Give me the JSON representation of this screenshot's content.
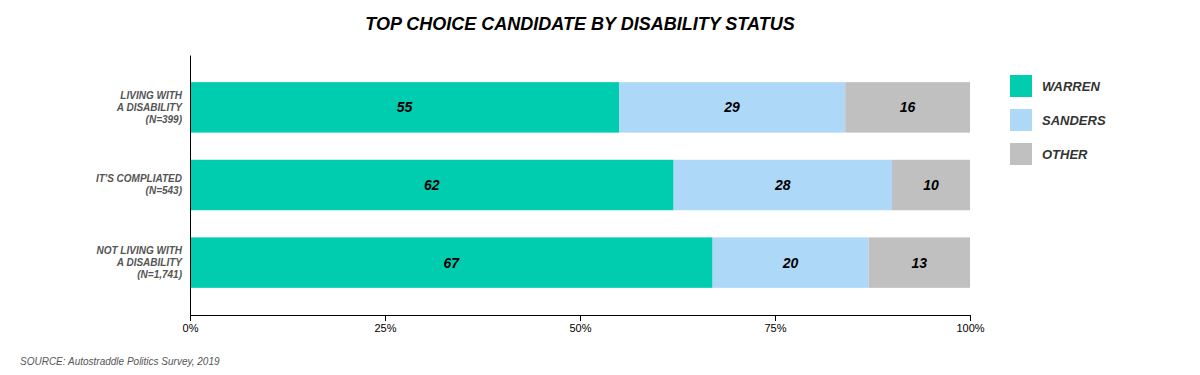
{
  "chart_data": {
    "type": "bar",
    "orientation": "horizontal",
    "stacked": true,
    "title": "TOP CHOICE CANDIDATE BY DISABILITY STATUS",
    "categories": [
      "NOT LIVING WITH\nA DISABILITY\n(N=1,741)",
      "IT'S COMPLIATED\n(N=543)",
      "LIVING WITH\nA DISABILITY\n(N=399)"
    ],
    "series": [
      {
        "name": "WARREN",
        "color": "#00CDB0",
        "values": [
          67,
          62,
          55
        ]
      },
      {
        "name": "SANDERS",
        "color": "#ADD8F7",
        "values": [
          20,
          28,
          29
        ]
      },
      {
        "name": "OTHER",
        "color": "#C0C0C0",
        "values": [
          13,
          10,
          16
        ]
      }
    ],
    "xlim": [
      0,
      100
    ],
    "xticks": [
      {
        "value": 0,
        "label": "0%"
      },
      {
        "value": 25,
        "label": "25%"
      },
      {
        "value": 50,
        "label": "50%"
      },
      {
        "value": 75,
        "label": "75%"
      },
      {
        "value": 100,
        "label": "100%"
      }
    ],
    "data_labels": true,
    "grid": false,
    "legend": "right",
    "annotations": [
      "SOURCE: Autostraddle Politics Survey, 2019"
    ]
  }
}
